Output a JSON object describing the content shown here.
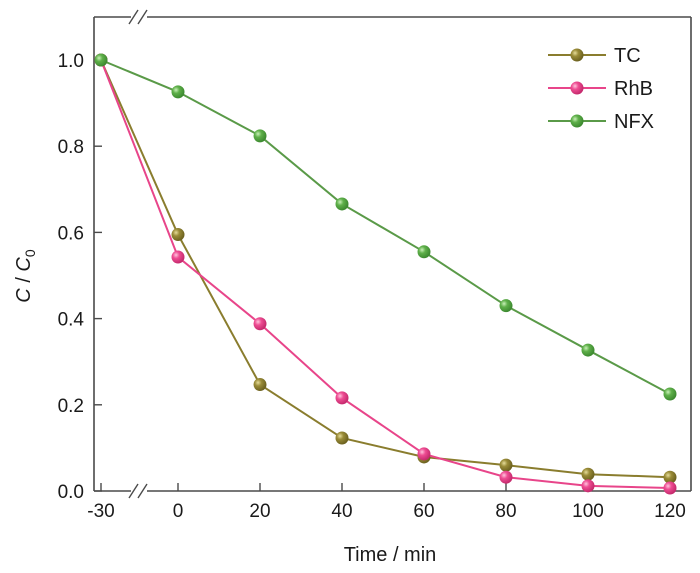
{
  "chart_data": {
    "type": "line",
    "title": "",
    "xlabel": "Time / min",
    "ylabel_parts": {
      "c1": "C",
      "slash": " / ",
      "c2": "C",
      "sub": "0"
    },
    "ylabel": "C / C0",
    "x_ticks": [
      -30,
      0,
      20,
      40,
      60,
      80,
      100,
      120
    ],
    "x_tick_labels": [
      "-30",
      "0",
      "20",
      "40",
      "60",
      "80",
      "100",
      "120"
    ],
    "y_ticks": [
      0.0,
      0.2,
      0.4,
      0.6,
      0.8,
      1.0
    ],
    "y_tick_labels": [
      "0.0",
      "0.2",
      "0.4",
      "0.6",
      "0.8",
      "1.0"
    ],
    "ylim": [
      -0.02,
      1.1
    ],
    "x_axis_break": "between -30 and 0",
    "grid": false,
    "legend_position": "top-right",
    "x": [
      -30,
      0,
      20,
      40,
      60,
      80,
      100,
      120
    ],
    "series": [
      {
        "name": "TC",
        "color": "#8a7d2e",
        "values": [
          1.0,
          0.595,
          0.247,
          0.123,
          0.079,
          0.06,
          0.039,
          0.032
        ]
      },
      {
        "name": "RhB",
        "color": "#e8458a",
        "values": [
          1.0,
          0.543,
          0.388,
          0.216,
          0.086,
          0.032,
          0.012,
          0.007
        ]
      },
      {
        "name": "NFX",
        "color": "#5a9a48",
        "values": [
          1.0,
          0.926,
          0.824,
          0.666,
          0.555,
          0.43,
          0.327,
          0.225
        ]
      }
    ]
  }
}
